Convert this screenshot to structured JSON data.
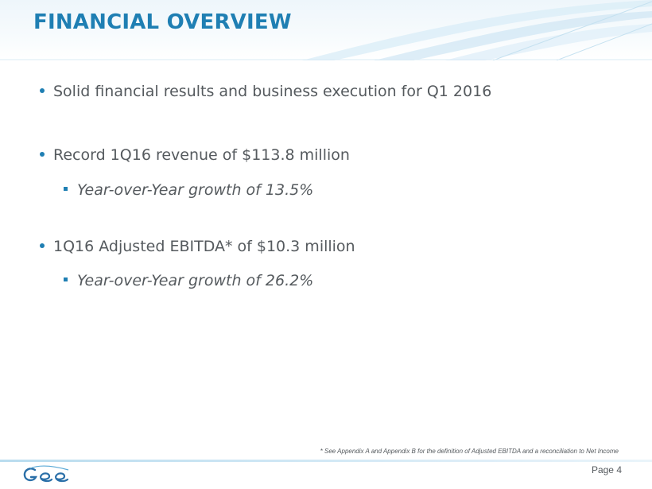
{
  "title": "FINANCIAL OVERVIEW",
  "bullets": [
    {
      "text": "Solid financial results and business execution for Q1 2016",
      "subs": []
    },
    {
      "text": "Record 1Q16 revenue of $113.8 million",
      "subs": [
        "Year-over-Year growth of 13.5%"
      ]
    },
    {
      "text": "1Q16 Adjusted EBITDA* of $10.3 million",
      "subs": [
        "Year-over-Year growth of 26.2%"
      ]
    }
  ],
  "footnote": "* See Appendix A and Appendix B for the definition of Adjusted EBITDA and a reconciliation to Net Income",
  "footer": {
    "page_label": "Page 4",
    "logo": "gee-group-logo"
  },
  "colors": {
    "accent": "#1f7fb3",
    "text": "#555a5e"
  }
}
